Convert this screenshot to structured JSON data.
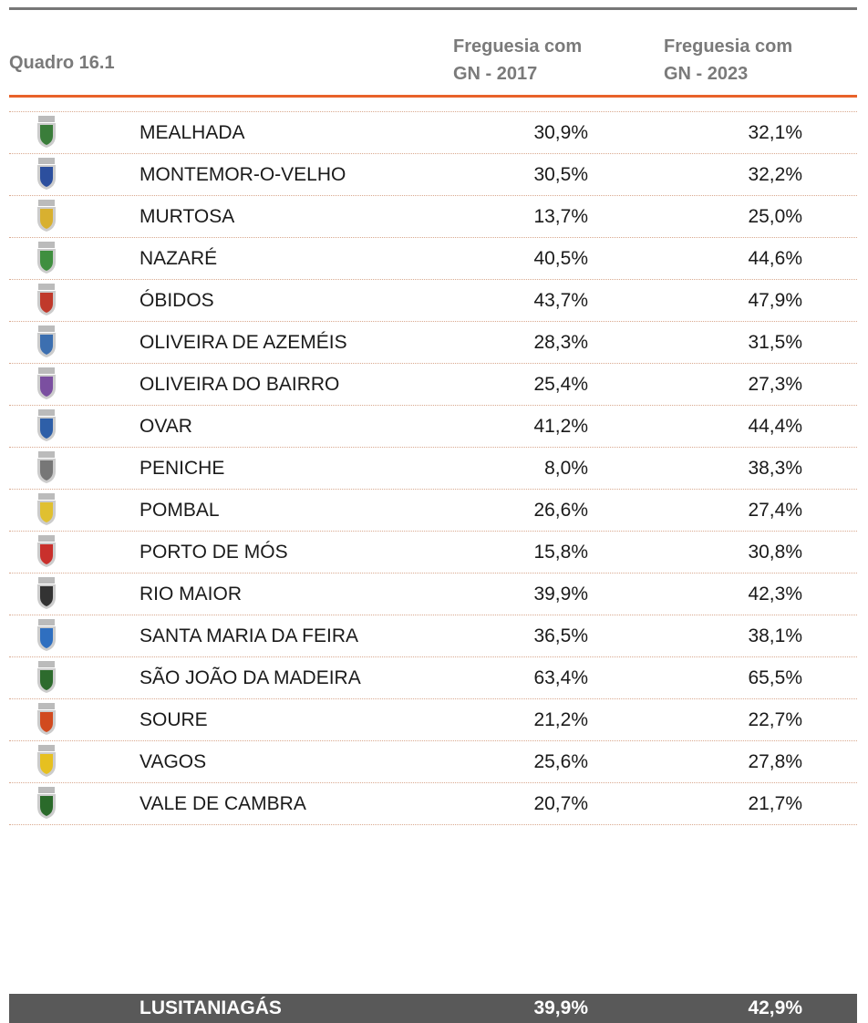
{
  "header": {
    "title": "Quadro 16.1",
    "columns": [
      [
        "Freguesia com",
        "GN - 2017"
      ],
      [
        "Freguesia com",
        "GN - 2023"
      ]
    ]
  },
  "table": {
    "rows": [
      [
        "MEALHADA",
        "30,9%",
        "32,1%"
      ],
      [
        "MONTEMOR-O-VELHO",
        "30,5%",
        "32,2%"
      ],
      [
        "MURTOSA",
        "13,7%",
        "25,0%"
      ],
      [
        "NAZARÉ",
        "40,5%",
        "44,6%"
      ],
      [
        "ÓBIDOS",
        "43,7%",
        "47,9%"
      ],
      [
        "OLIVEIRA DE AZEMÉIS",
        "28,3%",
        "31,5%"
      ],
      [
        "OLIVEIRA DO BAIRRO",
        "25,4%",
        "27,3%"
      ],
      [
        "OVAR",
        "41,2%",
        "44,4%"
      ],
      [
        "PENICHE",
        "8,0%",
        "38,3%"
      ],
      [
        "POMBAL",
        "26,6%",
        "27,4%"
      ],
      [
        "PORTO DE MÓS",
        "15,8%",
        "30,8%"
      ],
      [
        "RIO MAIOR",
        "39,9%",
        "42,3%"
      ],
      [
        "SANTA MARIA DA FEIRA",
        "36,5%",
        "38,1%"
      ],
      [
        "SÃO JOÃO DA MADEIRA",
        "63,4%",
        "65,5%"
      ],
      [
        "SOURE",
        "21,2%",
        "22,7%"
      ],
      [
        "VAGOS",
        "25,6%",
        "27,8%"
      ],
      [
        "VALE DE CAMBRA",
        "20,7%",
        "21,7%"
      ]
    ],
    "total": [
      "LUSITANIAGÁS",
      "39,9%",
      "42,9%"
    ]
  }
}
